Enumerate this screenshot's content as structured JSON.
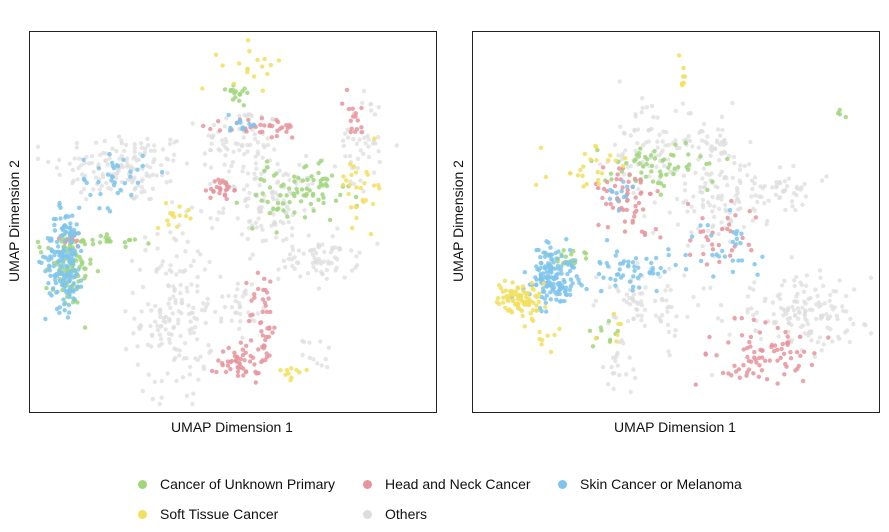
{
  "chart_data": [
    {
      "type": "scatter",
      "xlabel": "UMAP Dimension 1",
      "ylabel": "UMAP Dimension 2",
      "xlim": [
        0,
        100
      ],
      "ylim": [
        0,
        100
      ],
      "grid": false,
      "series": [
        {
          "name": "Others",
          "color": "#dddddd",
          "clusters": [
            {
              "x": 22,
              "y": 65,
              "sx": 9,
              "sy": 5,
              "n": 150
            },
            {
              "x": 52,
              "y": 72,
              "sx": 5,
              "sy": 5,
              "n": 70
            },
            {
              "x": 35,
              "y": 25,
              "sx": 5,
              "sy": 12,
              "n": 170
            },
            {
              "x": 60,
              "y": 55,
              "sx": 6,
              "sy": 6,
              "n": 110
            },
            {
              "x": 72,
              "y": 40,
              "sx": 5,
              "sy": 3,
              "n": 70
            },
            {
              "x": 83,
              "y": 72,
              "sx": 3,
              "sy": 7,
              "n": 45
            },
            {
              "x": 52,
              "y": 27,
              "sx": 2,
              "sy": 4,
              "n": 30
            },
            {
              "x": 72,
              "y": 14,
              "sx": 2,
              "sy": 2,
              "n": 12
            }
          ]
        },
        {
          "name": "Cancer of Unknown Primary",
          "color": "#9fd67a",
          "clusters": [
            {
              "x": 8,
              "y": 36,
              "sx": 3,
              "sy": 5,
              "n": 80
            },
            {
              "x": 15,
              "y": 45,
              "sx": 7,
              "sy": 1,
              "n": 28
            },
            {
              "x": 66,
              "y": 57,
              "sx": 7,
              "sy": 4,
              "n": 70
            },
            {
              "x": 50,
              "y": 86,
              "sx": 3,
              "sy": 1.5,
              "n": 16
            },
            {
              "x": 72,
              "y": 63,
              "sx": 2,
              "sy": 2,
              "n": 10
            }
          ]
        },
        {
          "name": "Head and Neck Cancer",
          "color": "#e8949c",
          "clusters": [
            {
              "x": 52,
              "y": 12,
              "sx": 3,
              "sy": 3,
              "n": 50
            },
            {
              "x": 58,
              "y": 24,
              "sx": 2,
              "sy": 7,
              "n": 40
            },
            {
              "x": 47,
              "y": 59,
              "sx": 1.5,
              "sy": 1.5,
              "n": 26
            },
            {
              "x": 58,
              "y": 76,
              "sx": 5,
              "sy": 1.5,
              "n": 35
            },
            {
              "x": 81,
              "y": 78,
              "sx": 1.5,
              "sy": 4,
              "n": 16
            },
            {
              "x": 8,
              "y": 45,
              "sx": 2,
              "sy": 1,
              "n": 12
            }
          ]
        },
        {
          "name": "Skin Cancer or Melanoma",
          "color": "#7ec4ec",
          "clusters": [
            {
              "x": 7,
              "y": 40,
              "sx": 2.5,
              "sy": 7,
              "n": 170
            },
            {
              "x": 19,
              "y": 62,
              "sx": 4,
              "sy": 4,
              "n": 35
            },
            {
              "x": 53,
              "y": 77,
              "sx": 2,
              "sy": 1.5,
              "n": 12
            }
          ]
        },
        {
          "name": "Soft Tissue Cancer",
          "color": "#f2df5e",
          "clusters": [
            {
              "x": 55,
              "y": 93,
              "sx": 4,
              "sy": 3,
              "n": 18
            },
            {
              "x": 83,
              "y": 60,
              "sx": 3,
              "sy": 5,
              "n": 28
            },
            {
              "x": 36,
              "y": 52,
              "sx": 3,
              "sy": 1.5,
              "n": 14
            },
            {
              "x": 65,
              "y": 8,
              "sx": 2,
              "sy": 1,
              "n": 10
            }
          ]
        }
      ]
    },
    {
      "type": "scatter",
      "xlabel": "UMAP Dimension 1",
      "ylabel": "UMAP Dimension 2",
      "xlim": [
        0,
        100
      ],
      "ylim": [
        0,
        100
      ],
      "grid": false,
      "series": [
        {
          "name": "Others",
          "color": "#dddddd",
          "clusters": [
            {
              "x": 82,
              "y": 25,
              "sx": 9,
              "sy": 5,
              "n": 150
            },
            {
              "x": 42,
              "y": 70,
              "sx": 5,
              "sy": 6,
              "n": 70
            },
            {
              "x": 60,
              "y": 58,
              "sx": 7,
              "sy": 7,
              "n": 120
            },
            {
              "x": 43,
              "y": 28,
              "sx": 6,
              "sy": 6,
              "n": 80
            },
            {
              "x": 78,
              "y": 58,
              "sx": 4,
              "sy": 3,
              "n": 40
            },
            {
              "x": 58,
              "y": 72,
              "sx": 4,
              "sy": 4,
              "n": 40
            },
            {
              "x": 36,
              "y": 10,
              "sx": 2,
              "sy": 4,
              "n": 20
            }
          ]
        },
        {
          "name": "Cancer of Unknown Primary",
          "color": "#9fd67a",
          "clusters": [
            {
              "x": 45,
              "y": 65,
              "sx": 8,
              "sy": 3,
              "n": 60
            },
            {
              "x": 22,
              "y": 40,
              "sx": 3,
              "sy": 2,
              "n": 20
            },
            {
              "x": 33,
              "y": 20,
              "sx": 2,
              "sy": 2,
              "n": 10
            },
            {
              "x": 92,
              "y": 79,
              "sx": 1,
              "sy": 1,
              "n": 4
            }
          ]
        },
        {
          "name": "Head and Neck Cancer",
          "color": "#e8949c",
          "clusters": [
            {
              "x": 73,
              "y": 14,
              "sx": 7,
              "sy": 4,
              "n": 80
            },
            {
              "x": 38,
              "y": 53,
              "sx": 4,
              "sy": 5,
              "n": 40
            },
            {
              "x": 35,
              "y": 60,
              "sx": 3,
              "sy": 3,
              "n": 20
            },
            {
              "x": 63,
              "y": 45,
              "sx": 5,
              "sy": 5,
              "n": 30
            }
          ]
        },
        {
          "name": "Skin Cancer or Melanoma",
          "color": "#7ec4ec",
          "clusters": [
            {
              "x": 18,
              "y": 35,
              "sx": 3,
              "sy": 4,
              "n": 150
            },
            {
              "x": 40,
              "y": 37,
              "sx": 8,
              "sy": 3,
              "n": 60
            },
            {
              "x": 62,
              "y": 43,
              "sx": 4,
              "sy": 4,
              "n": 25
            },
            {
              "x": 35,
              "y": 57,
              "sx": 2,
              "sy": 2,
              "n": 12
            }
          ]
        },
        {
          "name": "Soft Tissue Cancer",
          "color": "#f2df5e",
          "clusters": [
            {
              "x": 10,
              "y": 29,
              "sx": 3,
              "sy": 2.5,
              "n": 85
            },
            {
              "x": 26,
              "y": 65,
              "sx": 5,
              "sy": 3,
              "n": 25
            },
            {
              "x": 52,
              "y": 92,
              "sx": 1,
              "sy": 4,
              "n": 8
            },
            {
              "x": 17,
              "y": 18,
              "sx": 1.5,
              "sy": 2,
              "n": 8
            },
            {
              "x": 34,
              "y": 20,
              "sx": 2,
              "sy": 2,
              "n": 6
            }
          ]
        }
      ]
    }
  ],
  "legend": [
    {
      "label": "Cancer of Unknown Primary",
      "color": "#9fd67a"
    },
    {
      "label": "Head and Neck Cancer",
      "color": "#e8949c"
    },
    {
      "label": "Skin Cancer or Melanoma",
      "color": "#7ec4ec"
    },
    {
      "label": "Soft Tissue Cancer",
      "color": "#f2df5e"
    },
    {
      "label": "Others",
      "color": "#dddddd"
    }
  ]
}
